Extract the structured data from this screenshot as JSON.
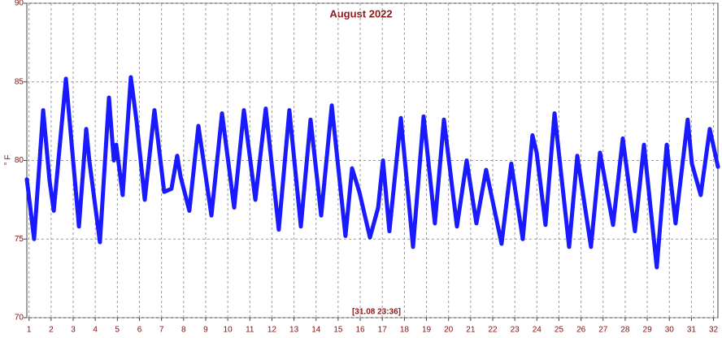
{
  "chart_data": {
    "type": "line",
    "title": "August 2022",
    "y_label": "° F",
    "annotation": "[31.08 23:36]",
    "xlim": [
      0.9,
      32.2
    ],
    "xticks": [
      1,
      2,
      3,
      4,
      5,
      6,
      7,
      8,
      9,
      10,
      11,
      12,
      13,
      14,
      15,
      16,
      17,
      18,
      19,
      20,
      21,
      22,
      23,
      24,
      25,
      26,
      27,
      28,
      29,
      30,
      31,
      32
    ],
    "ylim": [
      70,
      90
    ],
    "yticks": [
      70,
      75,
      80,
      85,
      90
    ],
    "grid": true,
    "series": [
      {
        "name": "Temperature",
        "color": "#1a1aff",
        "x": [
          0.9,
          1.23,
          1.64,
          1.93,
          2.12,
          2.67,
          3.26,
          3.59,
          3.73,
          4.21,
          4.62,
          4.84,
          4.95,
          5.24,
          5.61,
          5.87,
          6.24,
          6.68,
          7.12,
          7.45,
          7.71,
          7.86,
          8.26,
          8.67,
          9.26,
          9.74,
          10.29,
          10.73,
          11.25,
          11.72,
          12.31,
          12.79,
          13.31,
          13.75,
          14.23,
          14.71,
          15.33,
          15.63,
          15.96,
          16.44,
          16.81,
          17.03,
          17.32,
          17.84,
          18.39,
          18.87,
          19.38,
          19.79,
          20.38,
          20.82,
          21.26,
          21.7,
          22.4,
          22.84,
          23.36,
          23.8,
          23.99,
          24.39,
          24.8,
          25.46,
          25.83,
          26.45,
          26.86,
          27.45,
          27.89,
          28.44,
          28.85,
          29.43,
          29.88,
          30.28,
          30.83,
          31.02,
          31.42,
          31.83,
          32.2
        ],
        "values": [
          78.8,
          75.0,
          83.2,
          78.7,
          76.8,
          85.2,
          75.8,
          82.0,
          80.0,
          74.8,
          84.0,
          80.0,
          81.0,
          77.8,
          85.3,
          82.5,
          77.5,
          83.2,
          78.0,
          78.2,
          80.3,
          79.0,
          76.8,
          82.2,
          76.5,
          83.0,
          77.0,
          83.2,
          77.5,
          83.3,
          75.6,
          83.2,
          75.8,
          82.6,
          76.5,
          83.5,
          75.2,
          79.5,
          78.0,
          75.1,
          77.0,
          80.0,
          75.5,
          82.7,
          74.5,
          82.8,
          76.0,
          82.6,
          75.8,
          80.0,
          76.0,
          79.4,
          74.7,
          79.8,
          75.0,
          81.6,
          80.5,
          75.9,
          83.0,
          74.5,
          80.3,
          74.5,
          80.5,
          75.9,
          81.4,
          75.5,
          81.0,
          73.2,
          81.0,
          76.0,
          82.6,
          79.8,
          77.8,
          82.0,
          79.6
        ]
      }
    ]
  }
}
